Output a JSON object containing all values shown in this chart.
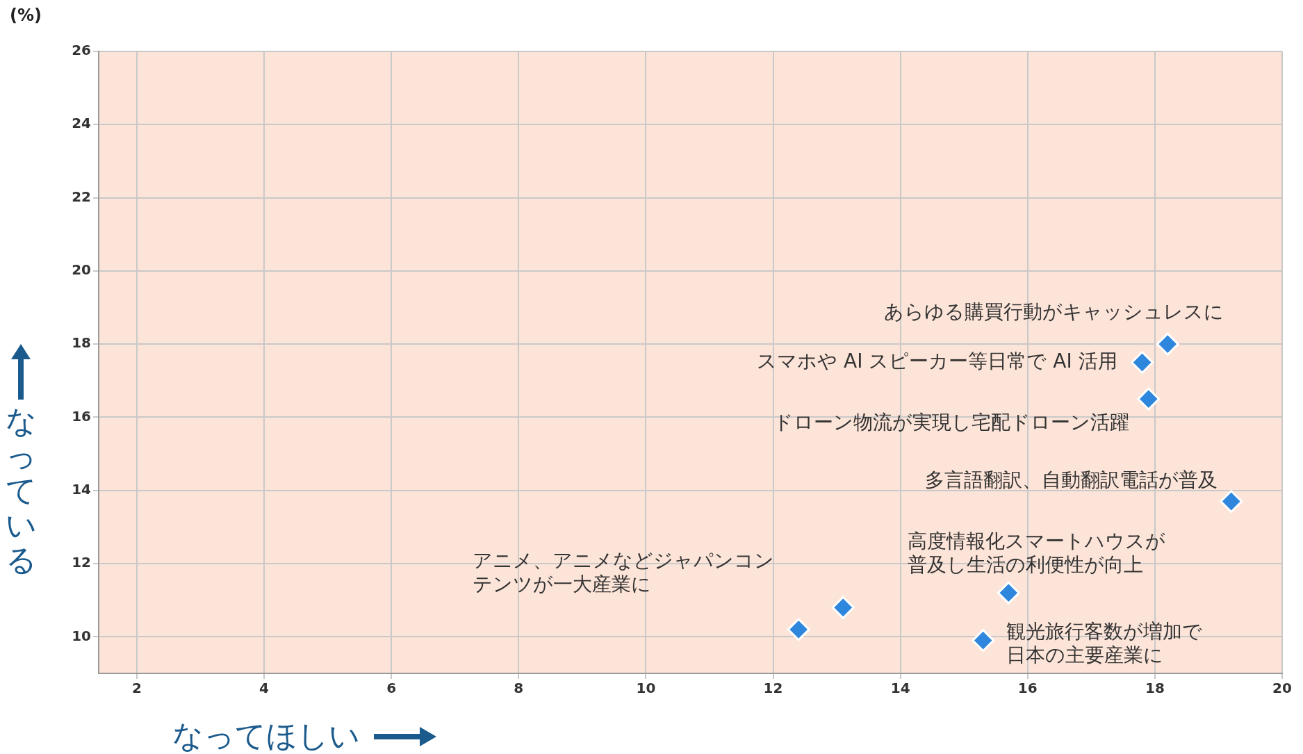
{
  "chart_data": {
    "type": "scatter",
    "xlabel": "なってほしい",
    "ylabel": "なっている",
    "xlim": [
      1.4,
      20
    ],
    "ylim": [
      9,
      26
    ],
    "xticks": [
      2,
      4,
      6,
      8,
      10,
      12,
      14,
      16,
      18,
      20
    ],
    "yticks": [
      10,
      12,
      14,
      16,
      18,
      20,
      22,
      24,
      26
    ],
    "grid": true,
    "legend": false,
    "marker": "diamond",
    "series": [
      {
        "color": "#2f86dd",
        "x": [
          18.2,
          17.8,
          17.9,
          19.2,
          15.7,
          13.1,
          12.4,
          15.3
        ],
        "values": [
          18,
          17.5,
          16.5,
          13.7,
          11.2,
          10.8,
          10.2,
          9.9
        ]
      }
    ],
    "annotations": [
      "(%)",
      {
        "text": "あらゆる購買行動がキャッシュレスに",
        "x": 18.2,
        "y": 18
      },
      {
        "text": "スマホや AI スピーカー等日常で AI 活用",
        "x": 17.8,
        "y": 17.5
      },
      {
        "text": "ドローン物流が実現し宅配ドローン活躍",
        "x": 17.9,
        "y": 16.5
      },
      {
        "text": "多言語翻訳、自動翻訳電話が普及",
        "x": 19.2,
        "y": 13.7
      },
      {
        "text": "高度情報化スマートハウスが普及し生活の利便性が向上",
        "x": 15.7,
        "y": 11.2
      },
      "アニメ、アニメなどジャパンコンテンツが一大産業に",
      {
        "text": "観光旅行客数が増加で日本の主要産業に",
        "x": 15.3,
        "y": 9.9
      }
    ]
  }
}
